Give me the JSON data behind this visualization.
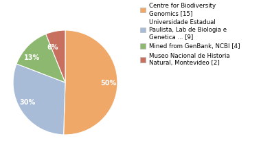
{
  "slices": [
    50,
    30,
    13,
    6
  ],
  "labels": [
    "50%",
    "30%",
    "13%",
    "6%"
  ],
  "colors": [
    "#f0a868",
    "#a8bcd8",
    "#8db870",
    "#c87060"
  ],
  "legend_labels": [
    "Centre for Biodiversity\nGenomics [15]",
    "Universidade Estadual\nPaulista, Lab de Biologia e\nGenetica ... [9]",
    "Mined from GenBank, NCBI [4]",
    "Museo Nacional de Historia\nNatural, Montevideo [2]"
  ],
  "startangle": 90,
  "label_distance": 0.68,
  "font_size": 7.0,
  "legend_font_size": 6.2,
  "background_color": "#ffffff"
}
